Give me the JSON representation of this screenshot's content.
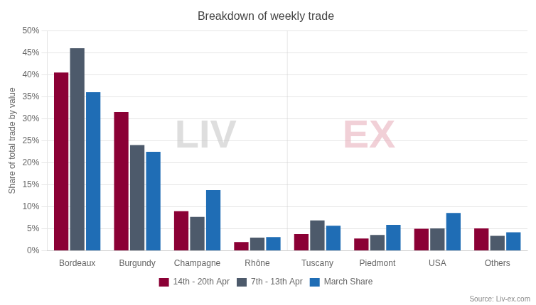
{
  "chart_data": {
    "type": "bar",
    "title": "Breakdown of weekly trade",
    "y_label": "Share of total trade by value",
    "annotations": [
      "LIV",
      "EX",
      "Source: Liv-ex.com"
    ],
    "categories": [
      "Bordeaux",
      "Burgundy",
      "Champagne",
      "Rhône",
      "Tuscany",
      "Piedmont",
      "USA",
      "Others"
    ],
    "series": [
      {
        "name": "14th - 20th Apr",
        "color": "#8B0035",
        "values": [
          0.405,
          0.315,
          0.09,
          0.02,
          0.038,
          0.028,
          0.05,
          0.051
        ]
      },
      {
        "name": "7th - 13th Apr",
        "color": "#4D5A6B",
        "values": [
          0.46,
          0.24,
          0.077,
          0.03,
          0.069,
          0.036,
          0.051,
          0.034
        ]
      },
      {
        "name": "March Share",
        "color": "#1F6DB5",
        "values": [
          0.36,
          0.225,
          0.138,
          0.031,
          0.057,
          0.059,
          0.086,
          0.042
        ]
      }
    ],
    "ylim": [
      0,
      0.5
    ],
    "yticks": [
      {
        "value": 0.0,
        "label": "0%"
      },
      {
        "value": 0.05,
        "label": "5%"
      },
      {
        "value": 0.1,
        "label": "10%"
      },
      {
        "value": 0.15,
        "label": "15%"
      },
      {
        "value": 0.2,
        "label": "20%"
      },
      {
        "value": 0.25,
        "label": "25%"
      },
      {
        "value": 0.3,
        "label": "30%"
      },
      {
        "value": 0.35,
        "label": "35%"
      },
      {
        "value": 0.4,
        "label": "40%"
      },
      {
        "value": 0.45,
        "label": "45%"
      },
      {
        "value": 0.5,
        "label": "50%"
      }
    ],
    "grid": true,
    "legend": "bottom"
  }
}
